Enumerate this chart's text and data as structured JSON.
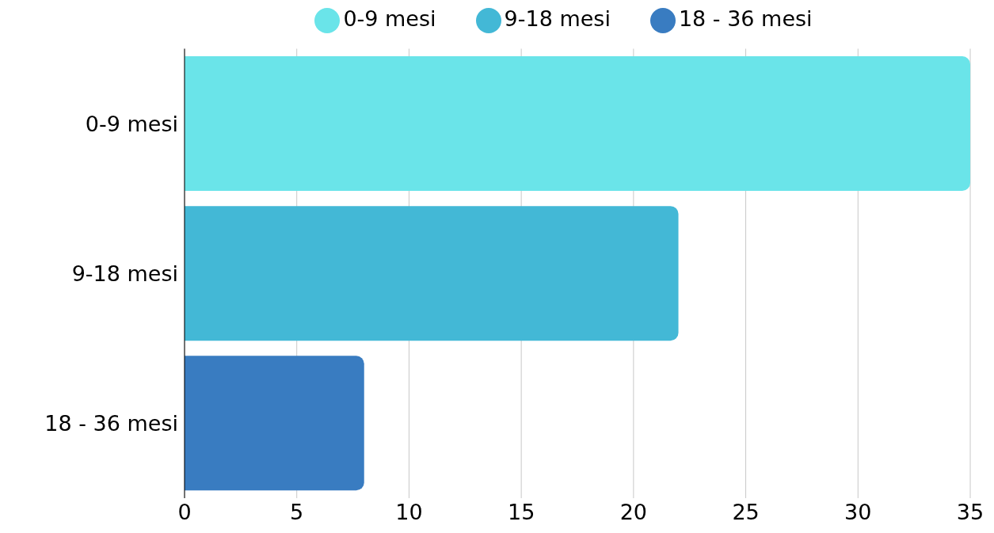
{
  "chart_data": {
    "type": "bar",
    "orientation": "horizontal",
    "stacked": true,
    "categories": [
      "0-9 mesi",
      "9-18 mesi",
      "18 - 36 mesi"
    ],
    "series": [
      {
        "name": "0-9 mesi",
        "color": "#6ae4e9",
        "values": [
          35,
          null,
          null
        ]
      },
      {
        "name": "9-18 mesi",
        "color": "#43b8d6",
        "values": [
          null,
          22,
          null
        ]
      },
      {
        "name": "18 - 36 mesi",
        "color": "#397cc1",
        "values": [
          null,
          null,
          8
        ]
      }
    ],
    "xlim": [
      0,
      35
    ],
    "xticks": [
      0,
      5,
      10,
      15,
      20,
      25,
      30,
      35
    ],
    "grid": "x",
    "legend": "top"
  }
}
